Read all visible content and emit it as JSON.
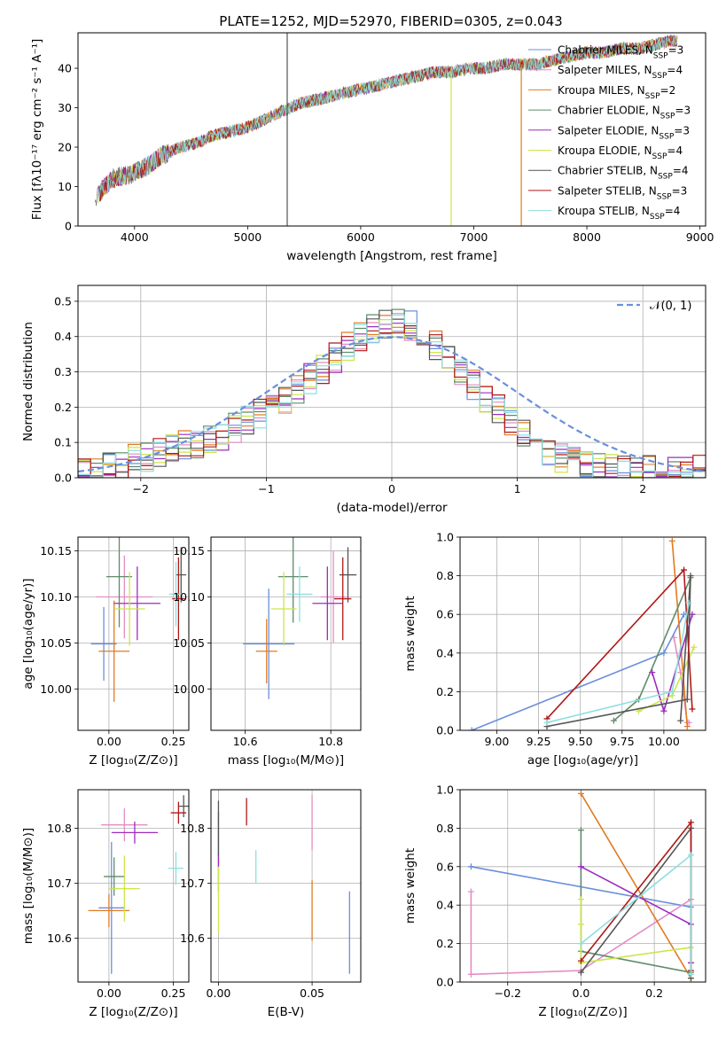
{
  "figure_title": "PLATE=1252, MJD=52970, FIBERID=0305, z=0.043",
  "series_styles": [
    {
      "name": "Chabrier MILES",
      "nssp": "3",
      "color": "#6a8fdc"
    },
    {
      "name": "Salpeter MILES",
      "nssp": "4",
      "color": "#e48cc4"
    },
    {
      "name": "Kroupa MILES",
      "nssp": "2",
      "color": "#e07b22"
    },
    {
      "name": "Chabrier ELODIE",
      "nssp": "3",
      "color": "#5f8c6a"
    },
    {
      "name": "Salpeter ELODIE",
      "nssp": "3",
      "color": "#9b2cbf"
    },
    {
      "name": "Kroupa ELODIE",
      "nssp": "4",
      "color": "#cce64a"
    },
    {
      "name": "Chabrier STELIB",
      "nssp": "4",
      "color": "#555555"
    },
    {
      "name": "Salpeter STELIB",
      "nssp": "3",
      "color": "#b01818"
    },
    {
      "name": "Kroupa STELIB",
      "nssp": "4",
      "color": "#8edede"
    }
  ],
  "chart_data": [
    {
      "id": "spectrum",
      "type": "line",
      "xlabel": "wavelength [Angstrom, rest frame]",
      "ylabel": "Flux [fλ10⁻¹⁷ erg cm⁻² s⁻¹ A⁻¹]",
      "xlim": [
        3500,
        9050
      ],
      "ylim": [
        0,
        49
      ],
      "xticks": [
        4000,
        5000,
        6000,
        7000,
        8000,
        9000
      ],
      "yticks": [
        0,
        10,
        20,
        30,
        40
      ],
      "legend_loc": "right",
      "legend_entries": [
        "Chabrier MILES, N_SSP=3",
        "Salpeter MILES, N_SSP=4",
        "Kroupa MILES, N_SSP=2",
        "Chabrier ELODIE, N_SSP=3",
        "Salpeter ELODIE, N_SSP=3",
        "Kroupa ELODIE, N_SSP=4",
        "Chabrier STELIB, N_SSP=4",
        "Salpeter STELIB, N_SSP=3",
        "Kroupa STELIB, N_SSP=4"
      ],
      "continuum": {
        "x": [
          3650,
          3800,
          3950,
          4100,
          4250,
          4400,
          4550,
          4700,
          4850,
          5000,
          5150,
          5300,
          5450,
          5600,
          5750,
          5900,
          6050,
          6200,
          6350,
          6500,
          6650,
          6800,
          6950,
          7100,
          7250,
          7400,
          7550,
          7700,
          7850,
          8000,
          8150,
          8300,
          8450,
          8600,
          8750
        ],
        "y": [
          7,
          12,
          13,
          15,
          18,
          20,
          21,
          23,
          24,
          25,
          27,
          29,
          31,
          32,
          33,
          34,
          35,
          36,
          37,
          38,
          39,
          39,
          40,
          40,
          41,
          41,
          41,
          42,
          43,
          44,
          44,
          45,
          45,
          46,
          47
        ]
      },
      "spikes": [
        {
          "series": "Chabrier STELIB",
          "x": 5350,
          "y_low": 0,
          "y_high": 49
        },
        {
          "series": "Kroupa ELODIE",
          "x": 6800,
          "y_low": 0,
          "y_high": 40
        },
        {
          "series": "Kroupa MILES",
          "x": 7420,
          "y_low": 0,
          "y_high": 41
        }
      ]
    },
    {
      "id": "residuals",
      "type": "histogram",
      "xlabel": "(data-model)/error",
      "ylabel": "Normed distribution",
      "xlim": [
        -2.5,
        2.5
      ],
      "ylim": [
        0,
        0.545
      ],
      "xticks": [
        -2,
        -1,
        0,
        1,
        2
      ],
      "yticks": [
        0.0,
        0.1,
        0.2,
        0.3,
        0.4,
        0.5
      ],
      "grid": true,
      "legend_loc": "upper right",
      "reference_curve": {
        "label": "𝒩(0, 1)",
        "color": "#6a8fdc",
        "mean": 0,
        "sigma": 1
      },
      "bin_width": 0.1,
      "bin_start": -2.5,
      "envelope": [
        0.02,
        0.02,
        0.03,
        0.04,
        0.05,
        0.06,
        0.07,
        0.08,
        0.09,
        0.1,
        0.11,
        0.12,
        0.14,
        0.16,
        0.18,
        0.2,
        0.22,
        0.25,
        0.28,
        0.31,
        0.34,
        0.37,
        0.4,
        0.42,
        0.44,
        0.44,
        0.43,
        0.41,
        0.38,
        0.34,
        0.3,
        0.26,
        0.22,
        0.19,
        0.16,
        0.13,
        0.1,
        0.08,
        0.06,
        0.05,
        0.04,
        0.03,
        0.03,
        0.02,
        0.02,
        0.02,
        0.02,
        0.02,
        0.02,
        0.02
      ]
    },
    {
      "id": "age_vs_Z",
      "type": "scatter",
      "xlabel": "Z [log₁₀(Z/Z⊙)]",
      "ylabel": "age  [log₁₀(age/yr)]",
      "xlim": [
        -0.12,
        0.31
      ],
      "ylim": [
        9.955,
        10.165
      ],
      "xticks": [
        0.0,
        0.25
      ],
      "yticks": [
        10.0,
        10.05,
        10.1,
        10.15
      ],
      "points": [
        {
          "series": "Chabrier MILES",
          "x": -0.02,
          "y": 10.049,
          "xerr": 0.05,
          "yerr": 0.04
        },
        {
          "series": "Salpeter MILES",
          "x": 0.06,
          "y": 10.1,
          "xerr": 0.11,
          "yerr": 0.045
        },
        {
          "series": "Kroupa MILES",
          "x": 0.02,
          "y": 10.041,
          "xerr": 0.06,
          "yerr": 0.055
        },
        {
          "series": "Chabrier ELODIE",
          "x": 0.04,
          "y": 10.122,
          "xerr": 0.05,
          "yerr": 0.055
        },
        {
          "series": "Salpeter ELODIE",
          "x": 0.11,
          "y": 10.093,
          "xerr": 0.09,
          "yerr": 0.04
        },
        {
          "series": "Kroupa ELODIE",
          "x": 0.08,
          "y": 10.087,
          "xerr": 0.06,
          "yerr": 0.04
        },
        {
          "series": "Chabrier STELIB",
          "x": 0.28,
          "y": 10.124,
          "xerr": 0.02,
          "yerr": 0.03
        },
        {
          "series": "Salpeter STELIB",
          "x": 0.27,
          "y": 10.098,
          "xerr": 0.025,
          "yerr": 0.045
        },
        {
          "series": "Kroupa STELIB",
          "x": 0.26,
          "y": 10.103,
          "xerr": 0.025,
          "yerr": 0.035
        }
      ]
    },
    {
      "id": "age_vs_mass",
      "type": "scatter",
      "xlabel": "mass [log₁₀(M/M⊙)]",
      "ylabel": "",
      "xlim": [
        10.52,
        10.87
      ],
      "ylim": [
        9.955,
        10.165
      ],
      "xticks": [
        10.6,
        10.8
      ],
      "yticks": [
        10.0,
        10.05,
        10.1,
        10.15
      ],
      "points": [
        {
          "series": "Chabrier MILES",
          "x": 10.655,
          "y": 10.049,
          "yerr": 0.06,
          "xerr": 0.06
        },
        {
          "series": "Salpeter MILES",
          "x": 10.806,
          "y": 10.1,
          "yerr": 0.05,
          "xerr": 0.03
        },
        {
          "series": "Kroupa MILES",
          "x": 10.65,
          "y": 10.041,
          "yerr": 0.035,
          "xerr": 0.025
        },
        {
          "series": "Chabrier ELODIE",
          "x": 10.712,
          "y": 10.122,
          "yerr": 0.05,
          "xerr": 0.035
        },
        {
          "series": "Salpeter ELODIE",
          "x": 10.792,
          "y": 10.093,
          "yerr": 0.04,
          "xerr": 0.035
        },
        {
          "series": "Kroupa ELODIE",
          "x": 10.69,
          "y": 10.087,
          "yerr": 0.04,
          "xerr": 0.03
        },
        {
          "series": "Chabrier STELIB",
          "x": 10.84,
          "y": 10.124,
          "yerr": 0.03,
          "xerr": 0.02
        },
        {
          "series": "Salpeter STELIB",
          "x": 10.828,
          "y": 10.098,
          "yerr": 0.045,
          "xerr": 0.02
        },
        {
          "series": "Kroupa STELIB",
          "x": 10.727,
          "y": 10.103,
          "yerr": 0.03,
          "xerr": 0.03
        }
      ]
    },
    {
      "id": "weight_vs_age",
      "type": "line",
      "xlabel": "age  [log₁₀(age/yr)]",
      "ylabel": "mass weight",
      "xlim": [
        8.78,
        10.25
      ],
      "ylim": [
        0,
        1.0
      ],
      "xticks": [
        9.0,
        9.25,
        9.5,
        9.75,
        10.0
      ],
      "yticks": [
        0.0,
        0.2,
        0.4,
        0.6,
        0.8,
        1.0
      ],
      "grid": true,
      "lines": [
        {
          "series": "Chabrier MILES",
          "x": [
            8.85,
            10.0,
            10.12
          ],
          "y": [
            0.0,
            0.4,
            0.6
          ]
        },
        {
          "series": "Salpeter MILES",
          "x": [
            10.06,
            10.1,
            10.14,
            10.15
          ],
          "y": [
            0.48,
            0.3,
            0.04,
            0.04
          ]
        },
        {
          "series": "Kroupa MILES",
          "x": [
            10.05,
            10.14
          ],
          "y": [
            0.98,
            0.02
          ]
        },
        {
          "series": "Chabrier ELODIE",
          "x": [
            9.7,
            9.85,
            10.16
          ],
          "y": [
            0.05,
            0.16,
            0.79
          ]
        },
        {
          "series": "Salpeter ELODIE",
          "x": [
            9.93,
            10.0,
            10.17
          ],
          "y": [
            0.3,
            0.1,
            0.6
          ]
        },
        {
          "series": "Kroupa ELODIE",
          "x": [
            9.85,
            10.05,
            10.18
          ],
          "y": [
            0.1,
            0.18,
            0.43
          ]
        },
        {
          "series": "Chabrier STELIB",
          "x": [
            9.3,
            10.14,
            10.16,
            10.1
          ],
          "y": [
            0.02,
            0.16,
            0.8,
            0.05
          ]
        },
        {
          "series": "Salpeter STELIB",
          "x": [
            9.3,
            10.12,
            10.17
          ],
          "y": [
            0.06,
            0.83,
            0.11
          ]
        },
        {
          "series": "Kroupa STELIB",
          "x": [
            9.3,
            10.05,
            10.15
          ],
          "y": [
            0.04,
            0.2,
            0.66
          ]
        }
      ]
    },
    {
      "id": "mass_vs_Z",
      "type": "scatter",
      "xlabel": "Z [log₁₀(Z/Z⊙)]",
      "ylabel": "mass [log₁₀(M/M⊙)]",
      "xlim": [
        -0.12,
        0.31
      ],
      "ylim": [
        10.52,
        10.87
      ],
      "xticks": [
        0.0,
        0.25
      ],
      "yticks": [
        10.6,
        10.7,
        10.8
      ],
      "points": [
        {
          "series": "Chabrier MILES",
          "x": 0.01,
          "y": 10.655,
          "xerr": 0.05,
          "yerr": 0.12
        },
        {
          "series": "Salpeter MILES",
          "x": 0.06,
          "y": 10.806,
          "xerr": 0.09,
          "yerr": 0.03
        },
        {
          "series": "Kroupa MILES",
          "x": 0.0,
          "y": 10.65,
          "xerr": 0.08,
          "yerr": 0.03
        },
        {
          "series": "Chabrier ELODIE",
          "x": 0.02,
          "y": 10.712,
          "xerr": 0.04,
          "yerr": 0.035
        },
        {
          "series": "Salpeter ELODIE",
          "x": 0.1,
          "y": 10.792,
          "xerr": 0.09,
          "yerr": 0.02
        },
        {
          "series": "Kroupa ELODIE",
          "x": 0.06,
          "y": 10.69,
          "xerr": 0.06,
          "yerr": 0.06
        },
        {
          "series": "Chabrier STELIB",
          "x": 0.29,
          "y": 10.84,
          "xerr": 0.02,
          "yerr": 0.02
        },
        {
          "series": "Salpeter STELIB",
          "x": 0.27,
          "y": 10.828,
          "xerr": 0.03,
          "yerr": 0.02
        },
        {
          "series": "Kroupa STELIB",
          "x": 0.26,
          "y": 10.727,
          "xerr": 0.03,
          "yerr": 0.03
        }
      ]
    },
    {
      "id": "mass_vs_ebv",
      "type": "scatter",
      "xlabel": "E(B-V)",
      "ylabel": "",
      "xlim": [
        -0.004,
        0.076
      ],
      "ylim": [
        10.52,
        10.87
      ],
      "xticks": [
        0.0,
        0.05
      ],
      "yticks": [
        10.6,
        10.7,
        10.8
      ],
      "points": [
        {
          "series": "Chabrier MILES",
          "x": 0.07,
          "y": 10.61,
          "yerr": 0.075
        },
        {
          "series": "Salpeter MILES",
          "x": 0.05,
          "y": 10.81,
          "yerr": 0.05
        },
        {
          "series": "Kroupa MILES",
          "x": 0.05,
          "y": 10.65,
          "yerr": 0.055
        },
        {
          "series": "Chabrier ELODIE",
          "x": 0.0,
          "y": 10.72,
          "yerr": 0.035
        },
        {
          "series": "Salpeter ELODIE",
          "x": 0.0,
          "y": 10.78,
          "yerr": 0.05
        },
        {
          "series": "Kroupa ELODIE",
          "x": 0.0,
          "y": 10.67,
          "yerr": 0.06
        },
        {
          "series": "Chabrier STELIB",
          "x": 0.0,
          "y": 10.8,
          "yerr": 0.05
        },
        {
          "series": "Salpeter STELIB",
          "x": 0.015,
          "y": 10.83,
          "yerr": 0.025
        },
        {
          "series": "Kroupa STELIB",
          "x": 0.02,
          "y": 10.73,
          "yerr": 0.03
        }
      ]
    },
    {
      "id": "weight_vs_Z",
      "type": "line",
      "xlabel": "Z [log₁₀(Z/Z⊙)]",
      "ylabel": "mass weight",
      "xlim": [
        -0.33,
        0.34
      ],
      "ylim": [
        0,
        1.0
      ],
      "xticks": [
        -0.2,
        0.0,
        0.2
      ],
      "yticks": [
        0.0,
        0.2,
        0.4,
        0.6,
        0.8,
        1.0
      ],
      "grid": true,
      "lines": [
        {
          "series": "Chabrier MILES",
          "x": [
            -0.3,
            0.3
          ],
          "y": [
            0.6,
            0.39
          ]
        },
        {
          "series": "Salpeter MILES",
          "x": [
            -0.3,
            -0.3,
            0.0,
            0.3
          ],
          "y": [
            0.47,
            0.04,
            0.06,
            0.43
          ]
        },
        {
          "series": "Kroupa MILES",
          "x": [
            0.0,
            0.3
          ],
          "y": [
            0.98,
            0.02
          ]
        },
        {
          "series": "Chabrier ELODIE",
          "x": [
            0.0,
            0.0,
            0.3
          ],
          "y": [
            0.79,
            0.16,
            0.05
          ]
        },
        {
          "series": "Salpeter ELODIE",
          "x": [
            0.0,
            0.3,
            0.3
          ],
          "y": [
            0.6,
            0.3,
            0.1
          ]
        },
        {
          "series": "Kroupa ELODIE",
          "x": [
            0.0,
            0.0,
            0.0,
            0.3
          ],
          "y": [
            0.43,
            0.3,
            0.1,
            0.18
          ]
        },
        {
          "series": "Chabrier STELIB",
          "x": [
            0.0,
            0.3,
            0.3
          ],
          "y": [
            0.05,
            0.8,
            0.02
          ]
        },
        {
          "series": "Salpeter STELIB",
          "x": [
            0.0,
            0.3,
            0.3
          ],
          "y": [
            0.11,
            0.83,
            0.06
          ]
        },
        {
          "series": "Kroupa STELIB",
          "x": [
            0.0,
            0.3,
            0.3
          ],
          "y": [
            0.2,
            0.66,
            0.04
          ]
        }
      ]
    }
  ]
}
